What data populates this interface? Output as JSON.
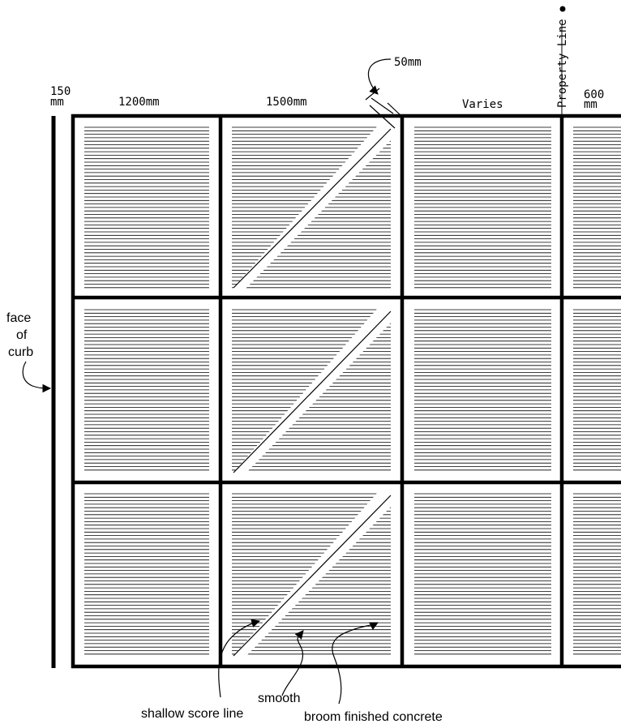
{
  "dimensions": {
    "curb_offset_top": "150",
    "curb_offset_bottom": "mm",
    "panel_1_width": "1200mm",
    "panel_2_width": "1500mm",
    "joint_width": "50mm",
    "panel_3_width": "Varies",
    "panel_4_width_top": "600",
    "panel_4_width_bottom": "mm"
  },
  "labels": {
    "property_line": "Property Line",
    "face_of_curb_1": "face",
    "face_of_curb_2": "of",
    "face_of_curb_3": "curb",
    "smooth": "smooth",
    "shallow_score_line": "shallow score line",
    "broom_finished_concrete": "broom finished concrete"
  },
  "colors": {
    "ink": "#000000",
    "paper": "#ffffff"
  }
}
